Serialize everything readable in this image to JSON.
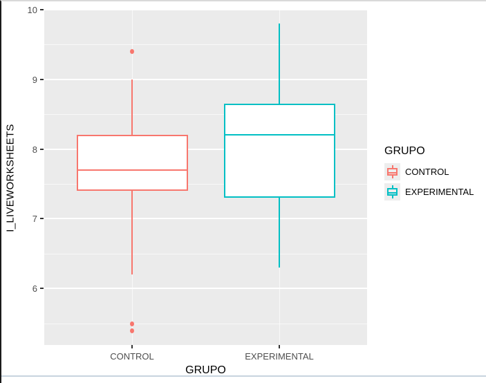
{
  "chart_data": {
    "type": "boxplot",
    "title": "",
    "xlabel": "GRUPO",
    "ylabel": "I_LIVEWORKSHEETS",
    "legend_title": "GRUPO",
    "legend_position": "right",
    "categories": [
      "CONTROL",
      "EXPERIMENTAL"
    ],
    "series": [
      {
        "name": "CONTROL",
        "color": "#F8766D",
        "q1": 7.4,
        "median": 7.7,
        "q3": 8.2,
        "whisker_low": 6.2,
        "whisker_high": 9.0,
        "outliers": [
          9.4,
          5.5,
          5.4
        ]
      },
      {
        "name": "EXPERIMENTAL",
        "color": "#00BFC4",
        "q1": 7.3,
        "median": 8.2,
        "q3": 8.65,
        "whisker_low": 6.3,
        "whisker_high": 9.8,
        "outliers": []
      }
    ],
    "y_breaks": [
      6,
      7,
      8,
      9,
      10
    ],
    "y_minor_breaks": [
      5.5,
      6.5,
      7.5,
      8.5,
      9.5
    ],
    "ylim": [
      5.19,
      10.0
    ],
    "grid": true,
    "panel_bg": "#EBEBEB",
    "grid_color": "#FFFFFF",
    "tick_label_color": "#4D4D4D"
  }
}
